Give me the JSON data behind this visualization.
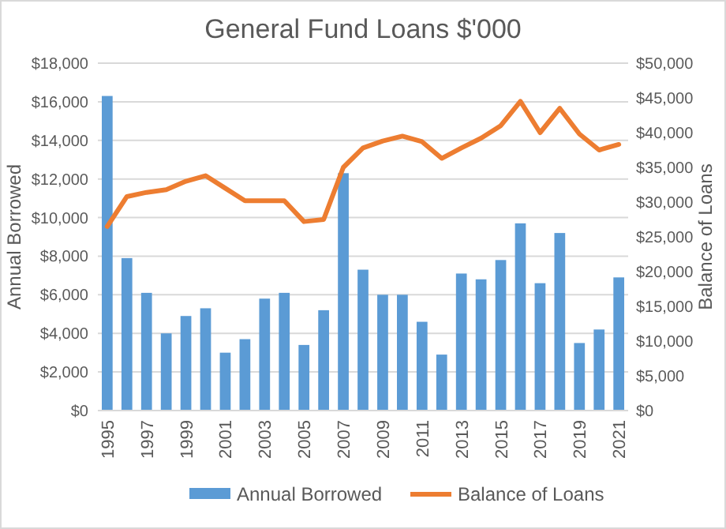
{
  "chart_data": {
    "type": "bar",
    "title": "General Fund Loans $'000",
    "ylabel": "Annual Borrowed",
    "y2label": "Balance of Loans",
    "categories": [
      "1995",
      null,
      "1997",
      null,
      "1999",
      null,
      "2001",
      null,
      "2003",
      null,
      "2005",
      null,
      "2007",
      null,
      "2009",
      null,
      "2011",
      null,
      "2013",
      null,
      "2015",
      null,
      "2017",
      null,
      "2019",
      null,
      "2021"
    ],
    "series": [
      {
        "name": "Annual Borrowed",
        "color": "#5b9bd5",
        "values": [
          16300,
          7900,
          6100,
          4000,
          4900,
          5300,
          3000,
          3700,
          5800,
          6100,
          3400,
          5200,
          12300,
          7300,
          6000,
          6000,
          4600,
          2900,
          7100,
          6800,
          7800,
          9700,
          6600,
          9200,
          3500,
          4200,
          6900
        ]
      },
      {
        "name": "Balance of Loans",
        "type": "line",
        "axis": "y2",
        "color": "#ed7d31",
        "values": [
          26500,
          30800,
          31400,
          31800,
          33000,
          33800,
          32000,
          30200,
          30200,
          30200,
          27200,
          27500,
          35000,
          37800,
          38800,
          39500,
          38700,
          36300,
          37800,
          39200,
          41000,
          44500,
          40000,
          43500,
          39800,
          37500,
          38300
        ]
      }
    ],
    "ylim": [
      0,
      18000
    ],
    "yticks": [
      {
        "value": 0,
        "label": "$0"
      },
      {
        "value": 2000,
        "label": "$2,000"
      },
      {
        "value": 4000,
        "label": "$4,000"
      },
      {
        "value": 6000,
        "label": "$6,000"
      },
      {
        "value": 8000,
        "label": "$8,000"
      },
      {
        "value": 10000,
        "label": "$10,000"
      },
      {
        "value": 12000,
        "label": "$12,000"
      },
      {
        "value": 14000,
        "label": "$14,000"
      },
      {
        "value": 16000,
        "label": "$16,000"
      },
      {
        "value": 18000,
        "label": "$18,000"
      }
    ],
    "y2lim": [
      0,
      50000
    ],
    "y2ticks": [
      {
        "value": 0,
        "label": "$0"
      },
      {
        "value": 5000,
        "label": "$5,000"
      },
      {
        "value": 10000,
        "label": "$10,000"
      },
      {
        "value": 15000,
        "label": "$15,000"
      },
      {
        "value": 20000,
        "label": "$20,000"
      },
      {
        "value": 25000,
        "label": "$25,000"
      },
      {
        "value": 30000,
        "label": "$30,000"
      },
      {
        "value": 35000,
        "label": "$35,000"
      },
      {
        "value": 40000,
        "label": "$40,000"
      },
      {
        "value": 45000,
        "label": "$45,000"
      },
      {
        "value": 50000,
        "label": "$50,000"
      }
    ],
    "grid": "y",
    "legend": "bottom"
  }
}
